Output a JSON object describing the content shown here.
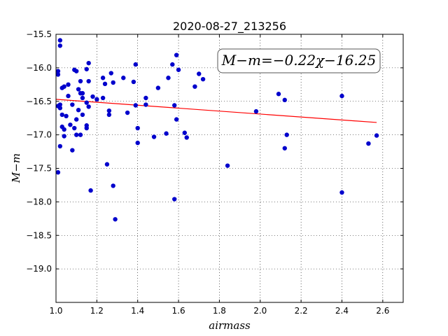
{
  "chart_data": {
    "type": "scatter",
    "title": "2020-08-27_213256",
    "xlabel": "airmass",
    "ylabel": "M−m",
    "xlim": [
      1.0,
      2.7
    ],
    "ylim": [
      -15.5,
      -19.5
    ],
    "y_inverted": true,
    "grid": true,
    "xticks": [
      1.0,
      1.2,
      1.4,
      1.6,
      1.8,
      2.0,
      2.2,
      2.4,
      2.6
    ],
    "xtick_labels": [
      "1.0",
      "1.2",
      "1.4",
      "1.6",
      "1.8",
      "2.0",
      "2.2",
      "2.4",
      "2.6"
    ],
    "yticks": [
      -15.5,
      -16.0,
      -16.5,
      -17.0,
      -17.5,
      -18.0,
      -18.5,
      -19.0
    ],
    "ytick_labels": [
      "−15.5",
      "−16.0",
      "−16.5",
      "−17.0",
      "−17.5",
      "−18.0",
      "−18.5",
      "−19.0"
    ],
    "annotation": "M−m=−0.22χ−16.25",
    "fit": {
      "slope": -0.22,
      "intercept": -16.25,
      "x_range": [
        1.0,
        2.57
      ],
      "color": "#ff0000"
    },
    "point_color": "#0000cc",
    "points": [
      [
        1.01,
        -16.05
      ],
      [
        1.01,
        -16.1
      ],
      [
        1.01,
        -16.57
      ],
      [
        1.01,
        -17.56
      ],
      [
        1.02,
        -15.59
      ],
      [
        1.02,
        -15.67
      ],
      [
        1.02,
        -16.55
      ],
      [
        1.02,
        -16.6
      ],
      [
        1.02,
        -17.17
      ],
      [
        1.03,
        -16.3
      ],
      [
        1.03,
        -16.7
      ],
      [
        1.03,
        -16.88
      ],
      [
        1.04,
        -16.28
      ],
      [
        1.04,
        -16.92
      ],
      [
        1.04,
        -17.02
      ],
      [
        1.05,
        -16.72
      ],
      [
        1.06,
        -16.25
      ],
      [
        1.06,
        -16.42
      ],
      [
        1.07,
        -16.85
      ],
      [
        1.08,
        -16.55
      ],
      [
        1.08,
        -17.23
      ],
      [
        1.09,
        -16.03
      ],
      [
        1.09,
        -16.9
      ],
      [
        1.1,
        -16.05
      ],
      [
        1.1,
        -16.77
      ],
      [
        1.1,
        -17.0
      ],
      [
        1.11,
        -16.32
      ],
      [
        1.11,
        -16.63
      ],
      [
        1.12,
        -16.38
      ],
      [
        1.12,
        -16.2
      ],
      [
        1.12,
        -17.0
      ],
      [
        1.13,
        -16.38
      ],
      [
        1.13,
        -16.45
      ],
      [
        1.13,
        -16.7
      ],
      [
        1.15,
        -16.02
      ],
      [
        1.15,
        -16.52
      ],
      [
        1.15,
        -16.9
      ],
      [
        1.15,
        -16.86
      ],
      [
        1.16,
        -15.93
      ],
      [
        1.16,
        -16.2
      ],
      [
        1.16,
        -16.58
      ],
      [
        1.17,
        -17.83
      ],
      [
        1.18,
        -16.43
      ],
      [
        1.2,
        -16.47
      ],
      [
        1.23,
        -16.15
      ],
      [
        1.23,
        -16.45
      ],
      [
        1.24,
        -16.24
      ],
      [
        1.25,
        -17.44
      ],
      [
        1.26,
        -16.64
      ],
      [
        1.26,
        -16.7
      ],
      [
        1.27,
        -16.08
      ],
      [
        1.28,
        -16.22
      ],
      [
        1.28,
        -17.76
      ],
      [
        1.29,
        -18.26
      ],
      [
        1.33,
        -16.15
      ],
      [
        1.35,
        -16.67
      ],
      [
        1.38,
        -16.21
      ],
      [
        1.39,
        -15.95
      ],
      [
        1.39,
        -16.56
      ],
      [
        1.4,
        -16.9
      ],
      [
        1.4,
        -17.12
      ],
      [
        1.44,
        -16.45
      ],
      [
        1.44,
        -16.55
      ],
      [
        1.48,
        -17.03
      ],
      [
        1.5,
        -16.3
      ],
      [
        1.54,
        -16.98
      ],
      [
        1.55,
        -16.15
      ],
      [
        1.57,
        -15.95
      ],
      [
        1.58,
        -16.56
      ],
      [
        1.58,
        -17.96
      ],
      [
        1.59,
        -15.81
      ],
      [
        1.59,
        -16.77
      ],
      [
        1.6,
        -16.03
      ],
      [
        1.63,
        -16.97
      ],
      [
        1.64,
        -17.04
      ],
      [
        1.68,
        -16.28
      ],
      [
        1.7,
        -16.09
      ],
      [
        1.72,
        -16.17
      ],
      [
        1.84,
        -17.46
      ],
      [
        1.98,
        -16.65
      ],
      [
        2.09,
        -16.39
      ],
      [
        2.12,
        -17.2
      ],
      [
        2.12,
        -16.48
      ],
      [
        2.13,
        -17.0
      ],
      [
        2.4,
        -16.42
      ],
      [
        2.4,
        -17.86
      ],
      [
        2.53,
        -17.13
      ],
      [
        2.57,
        -17.01
      ]
    ]
  }
}
